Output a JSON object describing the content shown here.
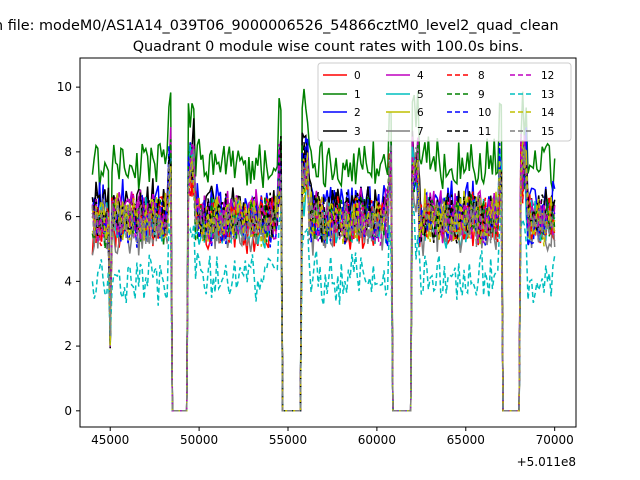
{
  "chart_data": {
    "type": "line",
    "suptitle": "n file: modeM0/AS1A14_039T06_9000006526_54866cztM0_level2_quad_clean",
    "title": "Quadrant 0 module wise count rates with 100.0s bins.",
    "xlabel": "",
    "ylabel": "",
    "x_offset_label": "+5.011e8",
    "xlim": [
      43300,
      71200
    ],
    "ylim": [
      -0.5,
      10.9
    ],
    "x_ticks": [
      45000,
      50000,
      55000,
      60000,
      65000,
      70000
    ],
    "x_tick_labels": [
      "45000",
      "50000",
      "55000",
      "60000",
      "65000",
      "70000"
    ],
    "y_ticks": [
      0,
      2,
      4,
      6,
      8,
      10
    ],
    "y_tick_labels": [
      "0",
      "2",
      "4",
      "6",
      "8",
      "10"
    ],
    "grid": false,
    "legend_position": "top-right",
    "time_range": [
      44000,
      70000
    ],
    "dip_times": [
      45000
    ],
    "gaps": [
      [
        48500,
        49300
      ],
      [
        54700,
        55700
      ],
      [
        60900,
        61900
      ],
      [
        67100,
        68000
      ]
    ],
    "series": [
      {
        "name": "0",
        "color": "#ff0000",
        "style": "solid",
        "mean": 5.7
      },
      {
        "name": "1",
        "color": "#008000",
        "style": "solid",
        "mean": 7.6
      },
      {
        "name": "2",
        "color": "#0000ff",
        "style": "solid",
        "mean": 6.4
      },
      {
        "name": "3",
        "color": "#000000",
        "style": "solid",
        "mean": 6.3
      },
      {
        "name": "4",
        "color": "#bf00bf",
        "style": "solid",
        "mean": 6.1
      },
      {
        "name": "5",
        "color": "#00bfbf",
        "style": "solid",
        "mean": 5.8
      },
      {
        "name": "6",
        "color": "#bfbf00",
        "style": "solid",
        "mean": 6.0
      },
      {
        "name": "7",
        "color": "#7f7f7f",
        "style": "solid",
        "mean": 5.6
      },
      {
        "name": "8",
        "color": "#ff0000",
        "style": "dashed",
        "mean": 5.9
      },
      {
        "name": "9",
        "color": "#008000",
        "style": "dashed",
        "mean": 5.9
      },
      {
        "name": "10",
        "color": "#0000ff",
        "style": "dashed",
        "mean": 5.8
      },
      {
        "name": "11",
        "color": "#000000",
        "style": "dashed",
        "mean": 6.0
      },
      {
        "name": "12",
        "color": "#bf00bf",
        "style": "dashed",
        "mean": 5.9
      },
      {
        "name": "13",
        "color": "#00bfbf",
        "style": "dashed",
        "mean": 4.1
      },
      {
        "name": "14",
        "color": "#bfbf00",
        "style": "dashed",
        "mean": 5.9
      },
      {
        "name": "15",
        "color": "#7f7f7f",
        "style": "dashed",
        "mean": 5.8
      }
    ]
  }
}
